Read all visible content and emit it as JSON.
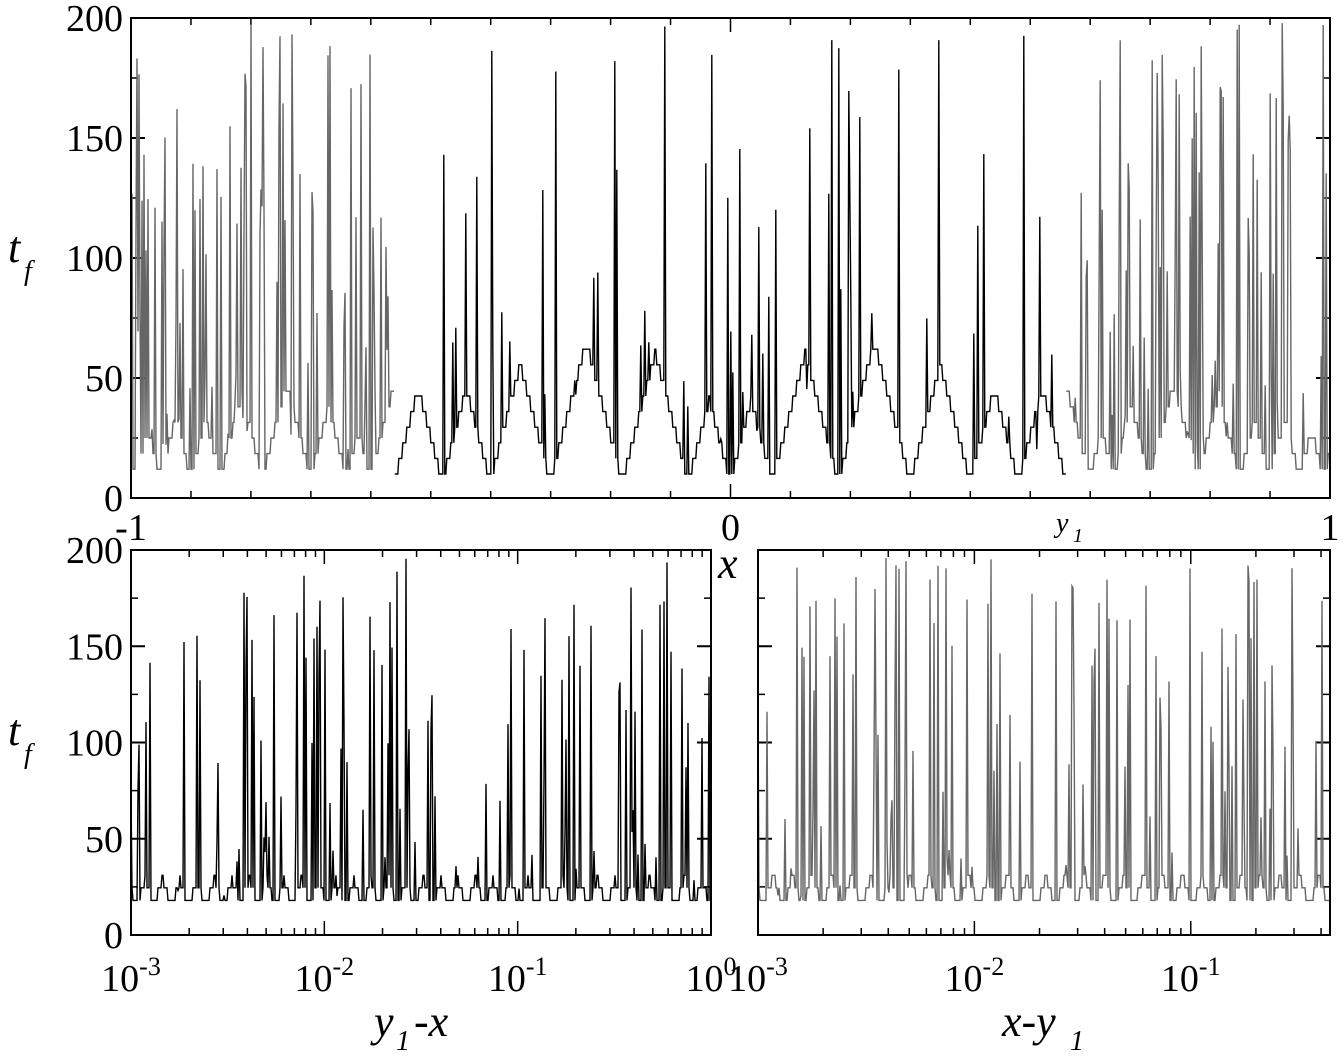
{
  "chart_data": [
    {
      "type": "line",
      "panel": "top",
      "xlabel": "x",
      "ylabel": "t_f",
      "xlim": [
        -1,
        1
      ],
      "ylim": [
        0,
        200
      ],
      "yticks": [
        0,
        50,
        100,
        150,
        200
      ],
      "xtick_labels": [
        "-1",
        "0",
        "1"
      ],
      "annotation": "y_1",
      "annotation_x": 0.56,
      "grid": false,
      "series": [
        {
          "color": "#000000",
          "x_range": [
            -0.56,
            0.56
          ],
          "description_dips": [
            -0.56,
            -0.48,
            -0.4,
            -0.3,
            -0.18,
            -0.07,
            0.0,
            0.07,
            0.18,
            0.3,
            0.4,
            0.48,
            0.56
          ]
        },
        {
          "color": "#666666",
          "x_range": [
            -1,
            -0.56
          ]
        },
        {
          "color": "#666666",
          "x_range": [
            0.56,
            1
          ]
        }
      ]
    },
    {
      "type": "line",
      "panel": "bottom-left",
      "xlabel": "y_1-x",
      "ylabel": "t_f",
      "xscale": "log",
      "xlim": [
        0.001,
        1
      ],
      "ylim": [
        0,
        200
      ],
      "yticks": [
        0,
        50,
        100,
        150,
        200
      ],
      "xtick_labels": [
        {
          "base": "10",
          "exp": "-3"
        },
        {
          "base": "10",
          "exp": "-2"
        },
        {
          "base": "10",
          "exp": "-1"
        },
        {
          "base": "10",
          "exp": "0"
        }
      ],
      "grid": false,
      "series": [
        {
          "color": "#000000"
        }
      ]
    },
    {
      "type": "line",
      "panel": "bottom-right",
      "xlabel": "x-y_1",
      "xscale": "log",
      "xlim": [
        0.001,
        0.44
      ],
      "ylim": [
        0,
        200
      ],
      "xtick_labels": [
        {
          "base": "10",
          "exp": "-3"
        },
        {
          "base": "10",
          "exp": "-2"
        },
        {
          "base": "10",
          "exp": "-1"
        }
      ],
      "grid": false,
      "series": [
        {
          "color": "#666666"
        }
      ]
    }
  ],
  "labels": {
    "top_ylabel_main": "t",
    "top_ylabel_sub": "f",
    "bl_ylabel_main": "t",
    "bl_ylabel_sub": "f",
    "top_xlabel": "x",
    "bl_xlabel_main": "y",
    "bl_xlabel_sub": "1",
    "bl_xlabel_tail": "-x",
    "br_xlabel_main": "x-y",
    "br_xlabel_sub": "1",
    "y1_main": "y",
    "y1_sub": "1"
  }
}
